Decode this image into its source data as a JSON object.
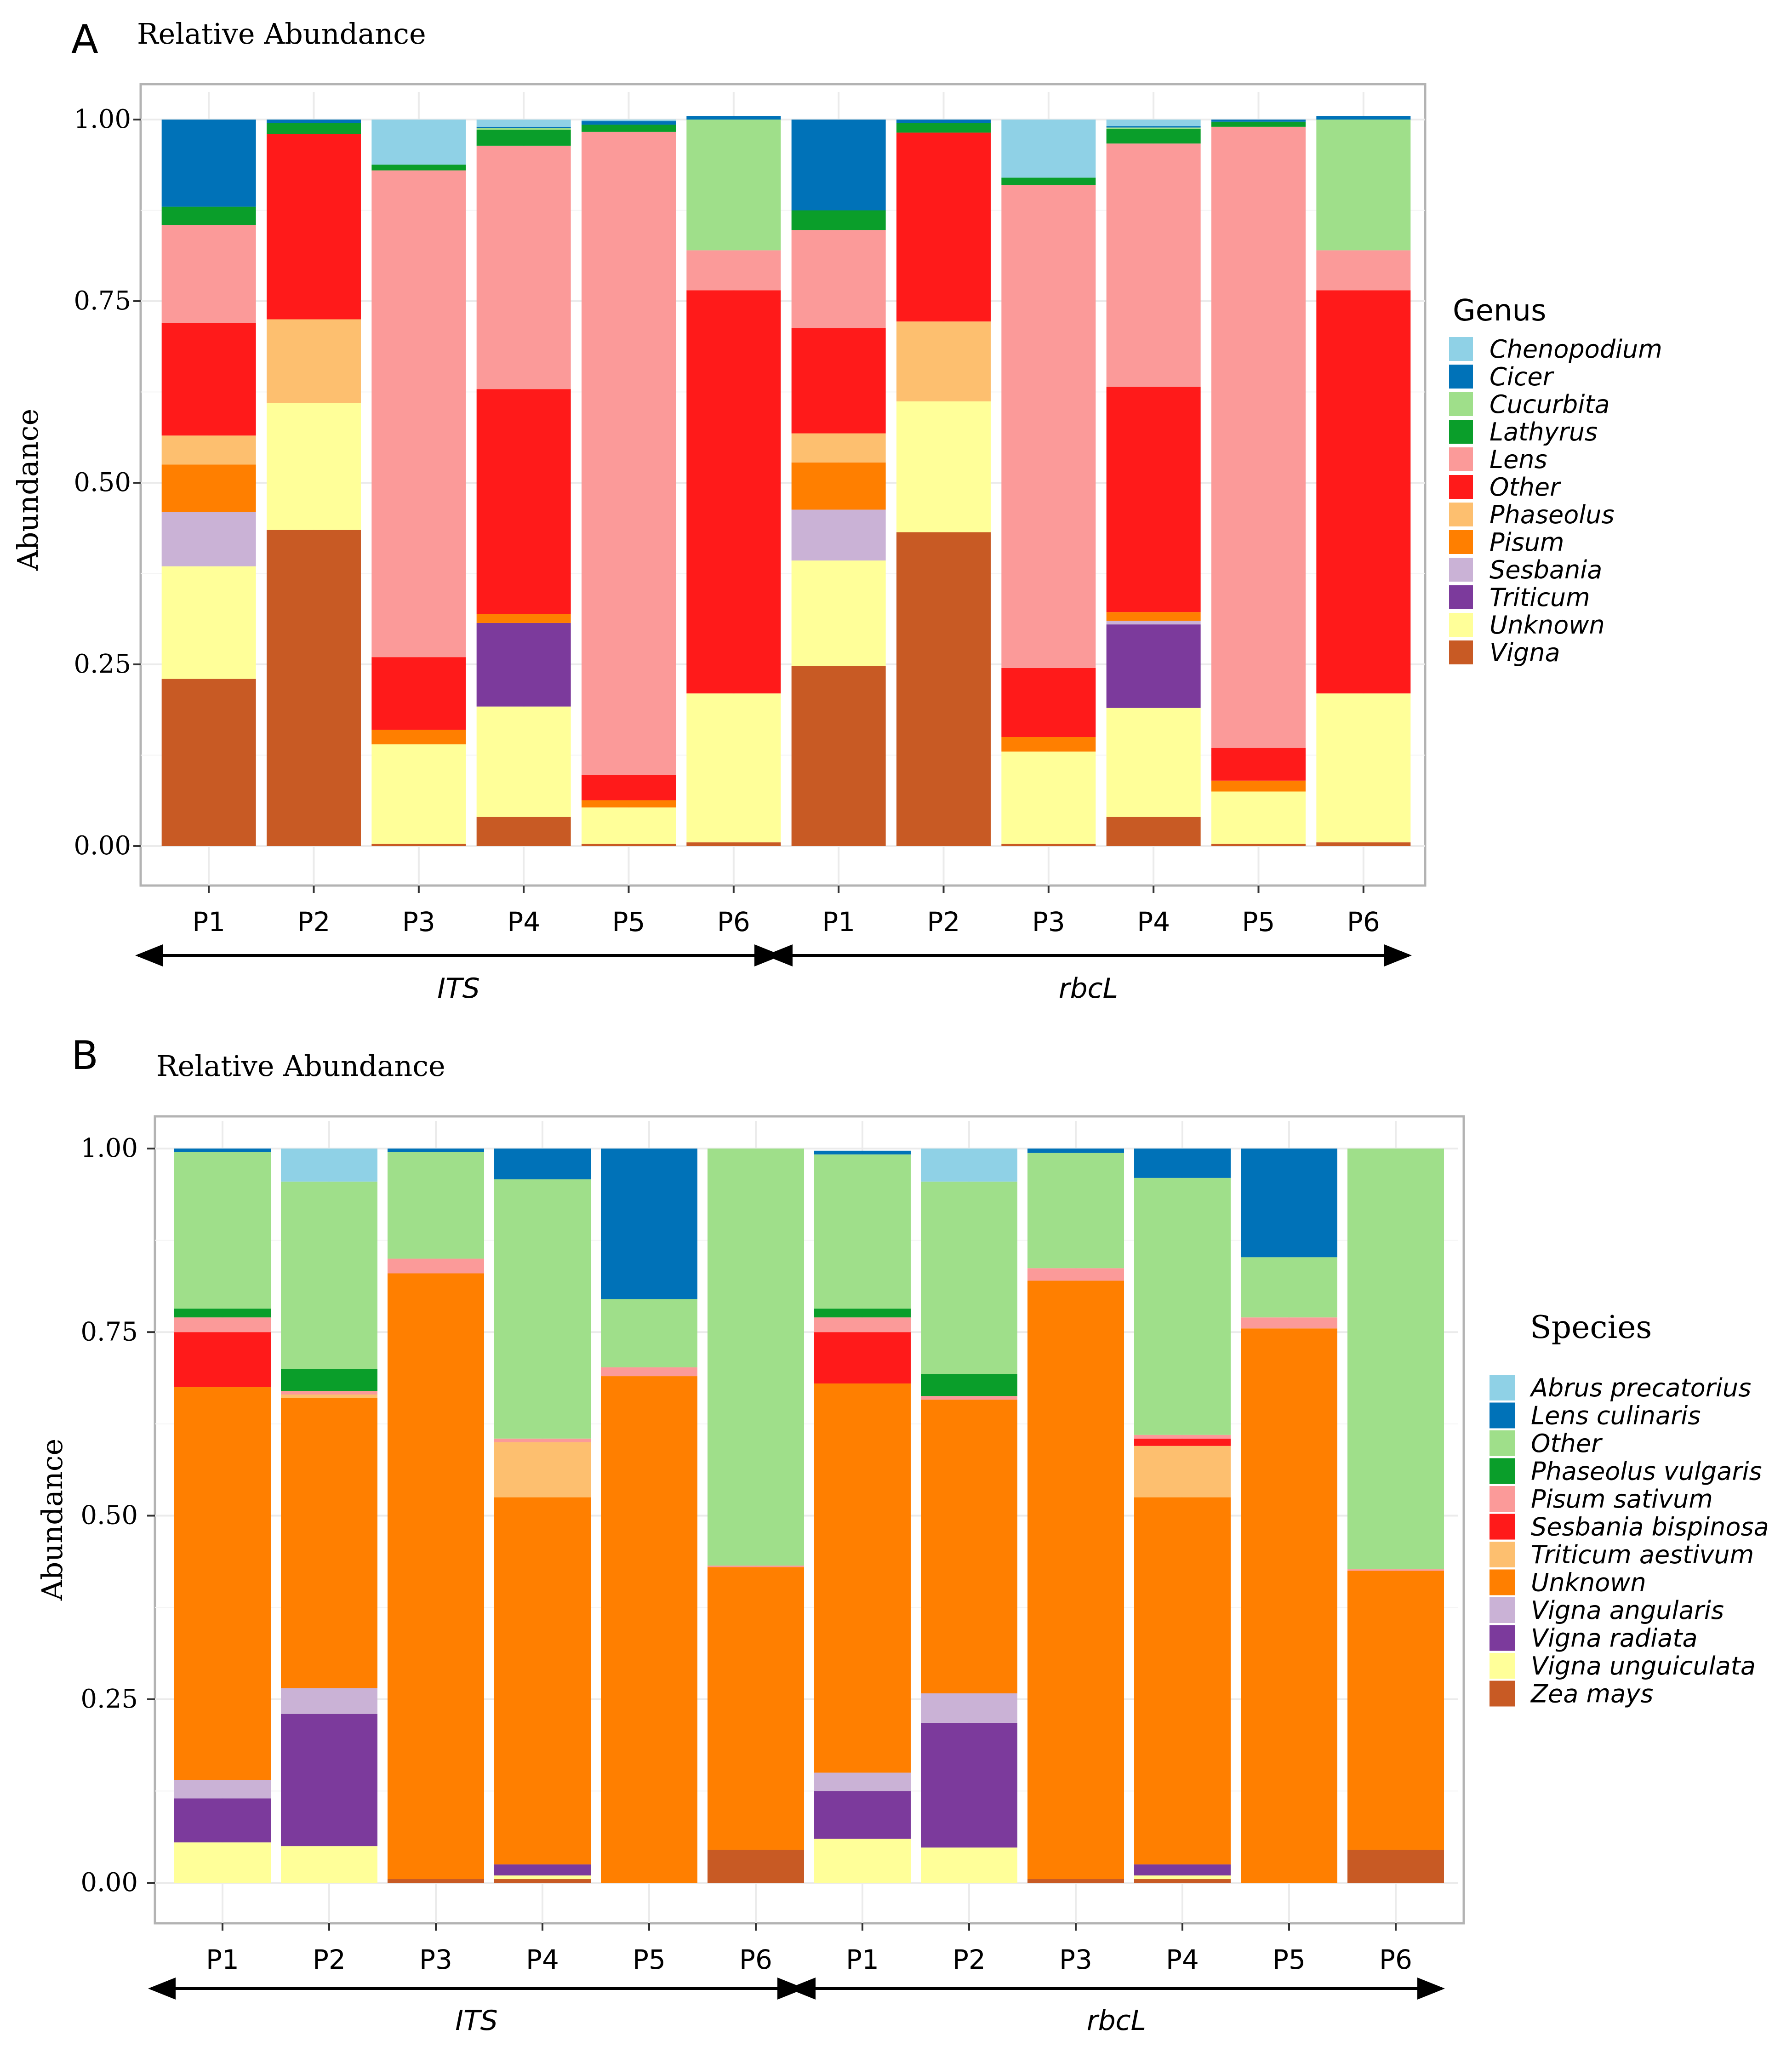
{
  "chart_data": [
    {
      "panel": "A",
      "type": "bar",
      "stacked": true,
      "title": "Relative Abundance",
      "ylabel": "Abundance",
      "ylim": [
        0,
        1
      ],
      "yticks": [
        "0.00",
        "0.25",
        "0.50",
        "0.75",
        "1.00"
      ],
      "categories": [
        "P1",
        "P2",
        "P3",
        "P4",
        "P5",
        "P6",
        "P1",
        "P2",
        "P3",
        "P4",
        "P5",
        "P6"
      ],
      "groups": [
        {
          "label": "ITS",
          "start": 0,
          "end": 5
        },
        {
          "label": "rbcL",
          "start": 6,
          "end": 11
        }
      ],
      "legend_title": "Genus",
      "series": [
        {
          "name": "Vigna",
          "color": "#c85a24",
          "values": [
            0.23,
            0.435,
            0.003,
            0.04,
            0.003,
            0.005,
            0.248,
            0.432,
            0.003,
            0.04,
            0.003,
            0.005
          ]
        },
        {
          "name": "Unknown",
          "color": "#ffff99",
          "values": [
            0.155,
            0.175,
            0.137,
            0.152,
            0.05,
            0.205,
            0.145,
            0.18,
            0.127,
            0.15,
            0.072,
            0.205
          ]
        },
        {
          "name": "Triticum",
          "color": "#7c3a9c",
          "values": [
            0,
            0,
            0,
            0.115,
            0,
            0,
            0,
            0,
            0,
            0.115,
            0,
            0
          ]
        },
        {
          "name": "Sesbania",
          "color": "#cab2d6",
          "values": [
            0.075,
            0,
            0,
            0,
            0,
            0,
            0.07,
            0,
            0,
            0.005,
            0,
            0
          ]
        },
        {
          "name": "Pisum",
          "color": "#ff7f00",
          "values": [
            0.065,
            0,
            0.02,
            0.012,
            0.01,
            0,
            0.065,
            0,
            0.02,
            0.012,
            0.015,
            0
          ]
        },
        {
          "name": "Phaseolus",
          "color": "#fdbf6f",
          "values": [
            0.04,
            0.115,
            0,
            0,
            0,
            0,
            0.04,
            0.11,
            0,
            0,
            0,
            0
          ]
        },
        {
          "name": "Other",
          "color": "#ff1a1a",
          "values": [
            0.155,
            0.255,
            0.1,
            0.31,
            0.035,
            0.555,
            0.145,
            0.26,
            0.095,
            0.31,
            0.045,
            0.555
          ]
        },
        {
          "name": "Lens",
          "color": "#fb9a99",
          "values": [
            0.135,
            0,
            0.67,
            0.335,
            0.885,
            0.055,
            0.135,
            0,
            0.665,
            0.335,
            0.855,
            0.055
          ]
        },
        {
          "name": "Lathyrus",
          "color": "#0a9e2a",
          "values": [
            0.025,
            0.015,
            0.008,
            0.022,
            0.01,
            0,
            0.027,
            0.013,
            0.01,
            0.02,
            0.007,
            0
          ]
        },
        {
          "name": "Cucurbita",
          "color": "#9fdf8a",
          "values": [
            0,
            0,
            0,
            0.002,
            0,
            0.18,
            0,
            0,
            0,
            0.002,
            0,
            0.18
          ]
        },
        {
          "name": "Cicer",
          "color": "#0072b8",
          "values": [
            0.12,
            0.005,
            0,
            0.002,
            0.005,
            0.005,
            0.125,
            0.005,
            0,
            0.002,
            0.003,
            0.005
          ]
        },
        {
          "name": "Chenopodium",
          "color": "#8fd1e6",
          "values": [
            0,
            0,
            0.062,
            0.01,
            0.002,
            0,
            0,
            0,
            0.08,
            0.009,
            0,
            0
          ]
        }
      ],
      "legend_order": [
        "Chenopodium",
        "Cicer",
        "Cucurbita",
        "Lathyrus",
        "Lens",
        "Other",
        "Phaseolus",
        "Pisum",
        "Sesbania",
        "Triticum",
        "Unknown",
        "Vigna"
      ]
    },
    {
      "panel": "B",
      "type": "bar",
      "stacked": true,
      "title": "Relative Abundance",
      "ylabel": "Abundance",
      "ylim": [
        0,
        1
      ],
      "yticks": [
        "0.00",
        "0.25",
        "0.50",
        "0.75",
        "1.00"
      ],
      "categories": [
        "P1",
        "P2",
        "P3",
        "P4",
        "P5",
        "P6",
        "P1",
        "P2",
        "P3",
        "P4",
        "P5",
        "P6"
      ],
      "groups": [
        {
          "label": "ITS",
          "start": 0,
          "end": 5
        },
        {
          "label": "rbcL",
          "start": 6,
          "end": 11
        }
      ],
      "legend_title": "Species",
      "series": [
        {
          "name": "Zea mays",
          "color": "#c85a24",
          "values": [
            0,
            0,
            0.005,
            0.005,
            0,
            0.045,
            0,
            0,
            0.005,
            0.005,
            0,
            0.045
          ]
        },
        {
          "name": "Vigna unguiculata",
          "color": "#ffff99",
          "values": [
            0.055,
            0.05,
            0,
            0.005,
            0,
            0,
            0.06,
            0.048,
            0,
            0.005,
            0,
            0
          ]
        },
        {
          "name": "Vigna radiata",
          "color": "#7c3a9c",
          "values": [
            0.06,
            0.18,
            0,
            0.015,
            0,
            0,
            0.065,
            0.17,
            0,
            0.015,
            0,
            0
          ]
        },
        {
          "name": "Vigna angularis",
          "color": "#cab2d6",
          "values": [
            0.025,
            0.035,
            0,
            0,
            0,
            0,
            0.025,
            0.04,
            0,
            0,
            0,
            0
          ]
        },
        {
          "name": "Unknown",
          "color": "#ff7f00",
          "values": [
            0.535,
            0.395,
            0.825,
            0.5,
            0.69,
            0.385,
            0.53,
            0.4,
            0.815,
            0.5,
            0.755,
            0.38
          ]
        },
        {
          "name": "Triticum aestivum",
          "color": "#fdbf6f",
          "values": [
            0,
            0.005,
            0,
            0.075,
            0,
            0,
            0,
            0,
            0,
            0.07,
            0,
            0
          ]
        },
        {
          "name": "Sesbania bispinosa",
          "color": "#ff1a1a",
          "values": [
            0.075,
            0,
            0,
            0,
            0,
            0,
            0.07,
            0,
            0,
            0.01,
            0,
            0
          ]
        },
        {
          "name": "Pisum sativum",
          "color": "#fb9a99",
          "values": [
            0.02,
            0.005,
            0.02,
            0.005,
            0.012,
            0.002,
            0.02,
            0.005,
            0.017,
            0.005,
            0.015,
            0.002
          ]
        },
        {
          "name": "Phaseolus vulgaris",
          "color": "#0a9e2a",
          "values": [
            0.012,
            0.03,
            0,
            0,
            0,
            0,
            0.012,
            0.03,
            0,
            0,
            0,
            0
          ]
        },
        {
          "name": "Other",
          "color": "#9fdf8a",
          "values": [
            0.213,
            0.255,
            0.145,
            0.353,
            0.093,
            0.568,
            0.21,
            0.262,
            0.157,
            0.35,
            0.082,
            0.573
          ]
        },
        {
          "name": "Lens culinaris",
          "color": "#0072b8",
          "values": [
            0.005,
            0,
            0.005,
            0.042,
            0.205,
            0,
            0.005,
            0,
            0.006,
            0.04,
            0.148,
            0
          ]
        },
        {
          "name": "Abrus precatorius",
          "color": "#8fd1e6",
          "values": [
            0,
            0.045,
            0,
            0,
            0,
            0,
            0,
            0.045,
            0,
            0,
            0,
            0
          ]
        }
      ],
      "legend_order": [
        "Abrus precatorius",
        "Lens culinaris",
        "Other",
        "Phaseolus vulgaris",
        "Pisum sativum",
        "Sesbania bispinosa",
        "Triticum aestivum",
        "Unknown",
        "Vigna angularis",
        "Vigna radiata",
        "Vigna unguiculata",
        "Zea mays"
      ]
    }
  ]
}
